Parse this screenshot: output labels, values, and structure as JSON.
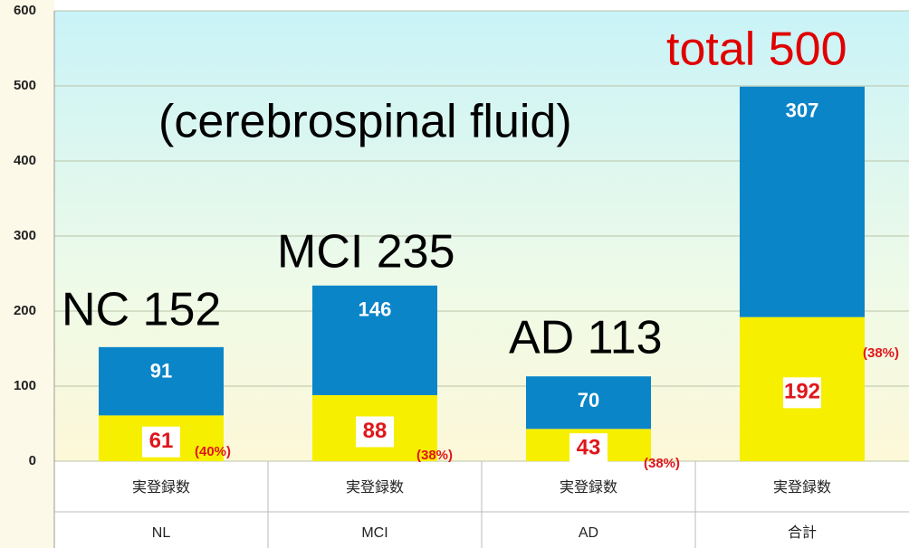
{
  "chart_data": {
    "type": "stacked_bar",
    "categories": [
      "NL",
      "MCI",
      "AD",
      "合計"
    ],
    "sub_categories": [
      "実登録数",
      "実登録数",
      "実登録数",
      "実登録数"
    ],
    "series": [
      {
        "color": "#f7ef00",
        "values": [
          61,
          88,
          43,
          192
        ]
      },
      {
        "color": "#0a85c8",
        "values": [
          91,
          146,
          70,
          307
        ]
      }
    ],
    "ylim": [
      0,
      600
    ],
    "yticks": [
      0,
      100,
      200,
      300,
      400,
      500,
      600
    ],
    "grid": true,
    "annotations": [
      "NC 152",
      "MCI 235",
      "AD 113",
      "total 500",
      "(cerebrospinal fluid)",
      "(40%)",
      "(38%)",
      "(38%)",
      "(38%)"
    ]
  }
}
